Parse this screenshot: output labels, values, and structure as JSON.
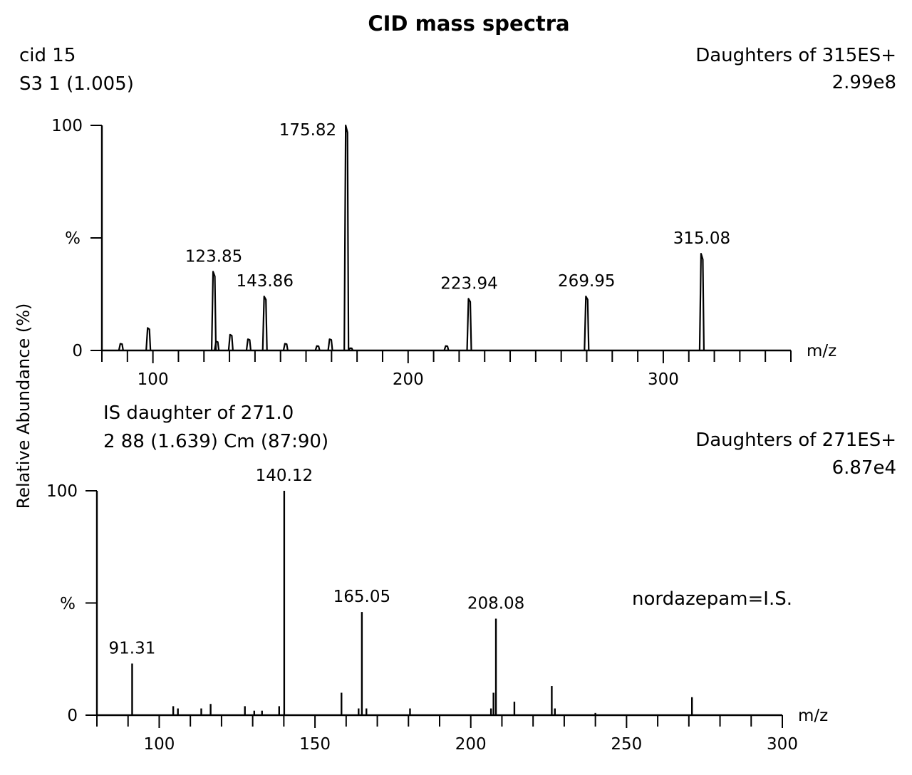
{
  "figure": {
    "title": "CID mass spectra",
    "y_axis_label": "Relative Abundance (%)"
  },
  "chart_data": [
    {
      "type": "line",
      "title": "",
      "header_left": [
        "cid 15",
        "S3 1 (1.005)"
      ],
      "header_right": [
        "Daughters of 315ES+",
        "2.99e8"
      ],
      "xlabel": "m/z",
      "ylabel": "%",
      "xlim": [
        80,
        350
      ],
      "ylim": [
        0,
        100
      ],
      "x_ticks": [
        100,
        200,
        300
      ],
      "y_ticks": [
        0,
        100
      ],
      "peaks": [
        {
          "x": 87.5,
          "y": 3
        },
        {
          "x": 98.2,
          "y": 10
        },
        {
          "x": 123.85,
          "y": 35,
          "label": "123.85"
        },
        {
          "x": 125.0,
          "y": 4
        },
        {
          "x": 130.5,
          "y": 7
        },
        {
          "x": 137.5,
          "y": 5
        },
        {
          "x": 143.86,
          "y": 24,
          "label": "143.86"
        },
        {
          "x": 152.0,
          "y": 3
        },
        {
          "x": 164.5,
          "y": 2
        },
        {
          "x": 169.5,
          "y": 5
        },
        {
          "x": 175.82,
          "y": 100,
          "label": "175.82"
        },
        {
          "x": 177.5,
          "y": 1
        },
        {
          "x": 215.0,
          "y": 2
        },
        {
          "x": 223.94,
          "y": 23,
          "label": "223.94"
        },
        {
          "x": 269.95,
          "y": 24,
          "label": "269.95"
        },
        {
          "x": 315.08,
          "y": 43,
          "label": "315.08"
        }
      ]
    },
    {
      "type": "bar",
      "title": "",
      "header_left": [
        "IS daughter of 271.0",
        "2 88 (1.639) Cm (87:90)"
      ],
      "header_right": [
        "Daughters of 271ES+",
        "6.87e4"
      ],
      "annotation": "nordazepam=I.S.",
      "xlabel": "m/z",
      "ylabel": "%",
      "xlim": [
        80,
        300
      ],
      "ylim": [
        0,
        100
      ],
      "x_ticks": [
        100,
        150,
        200,
        250,
        300
      ],
      "y_ticks": [
        0,
        100
      ],
      "peaks": [
        {
          "x": 91.31,
          "y": 23,
          "label": "91.31"
        },
        {
          "x": 104.5,
          "y": 4
        },
        {
          "x": 106.0,
          "y": 3
        },
        {
          "x": 113.5,
          "y": 3
        },
        {
          "x": 116.5,
          "y": 5
        },
        {
          "x": 127.5,
          "y": 4
        },
        {
          "x": 130.5,
          "y": 2
        },
        {
          "x": 133.0,
          "y": 2
        },
        {
          "x": 138.5,
          "y": 4
        },
        {
          "x": 140.12,
          "y": 100,
          "label": "140.12"
        },
        {
          "x": 158.5,
          "y": 10
        },
        {
          "x": 164.0,
          "y": 3
        },
        {
          "x": 165.05,
          "y": 46,
          "label": "165.05"
        },
        {
          "x": 166.5,
          "y": 3
        },
        {
          "x": 180.5,
          "y": 3
        },
        {
          "x": 206.5,
          "y": 3
        },
        {
          "x": 207.3,
          "y": 10
        },
        {
          "x": 208.08,
          "y": 43,
          "label": "208.08"
        },
        {
          "x": 214.0,
          "y": 6
        },
        {
          "x": 226.0,
          "y": 13
        },
        {
          "x": 227.0,
          "y": 3
        },
        {
          "x": 240.0,
          "y": 1
        },
        {
          "x": 271.0,
          "y": 8
        }
      ]
    }
  ]
}
